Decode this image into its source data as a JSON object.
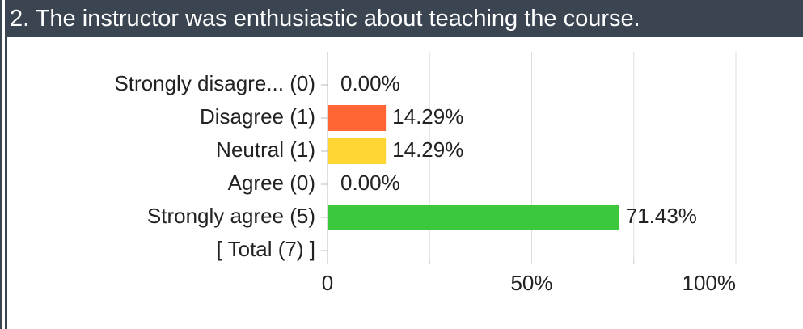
{
  "chart_data": {
    "type": "hbar",
    "title": "2. The instructor was enthusiastic about teaching the course.",
    "categories": [
      "Strongly disagre... (0)",
      "Disagree (1)",
      "Neutral (1)",
      "Agree (0)",
      "Strongly agree (5)",
      "[ Total (7) ]"
    ],
    "values": [
      0,
      14.29,
      14.29,
      0,
      71.43,
      null
    ],
    "value_labels": [
      "0.00%",
      "14.29%",
      "14.29%",
      "0.00%",
      "71.43%",
      null
    ],
    "colors": [
      null,
      "#ff6633",
      "#ffd633",
      null,
      "#3cc83c",
      null
    ],
    "xlim": [
      0,
      100
    ],
    "xticks": [
      0,
      {
        "value": 50,
        "label": "50%"
      },
      {
        "value": 100,
        "label": "100%"
      }
    ],
    "minor_xticks": [
      25,
      75
    ],
    "grid": true
  }
}
